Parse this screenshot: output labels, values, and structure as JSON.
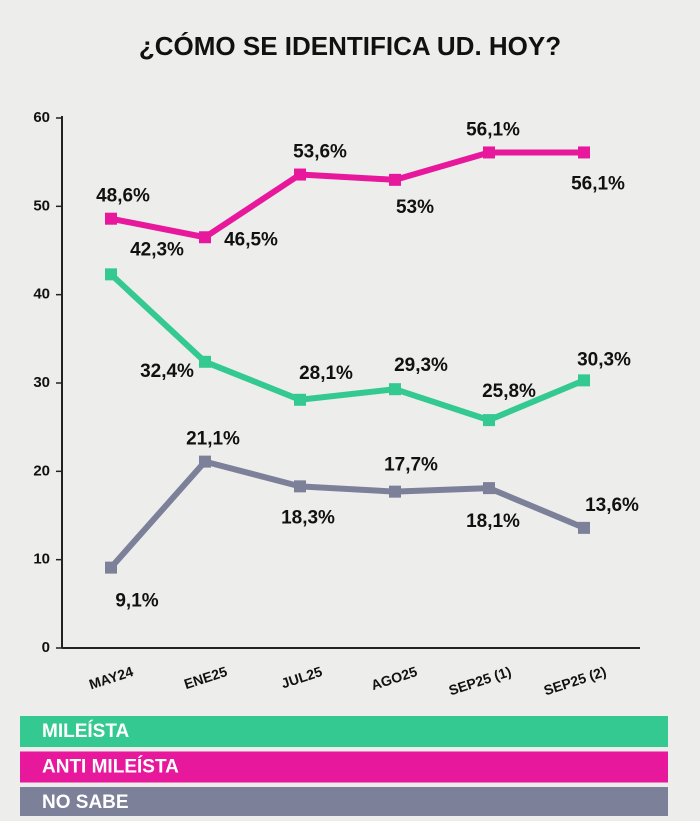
{
  "chart_data": {
    "type": "line",
    "title": "¿CÓMO SE IDENTIFICA UD. HOY?",
    "categories": [
      "MAY24",
      "ENE25",
      "JUL25",
      "AGO25",
      "SEP25 (1)",
      "SEP25 (2)"
    ],
    "series": [
      {
        "name": "MILEÍSTA",
        "color": "#34c991",
        "values": [
          42.3,
          32.4,
          28.1,
          29.3,
          25.8,
          30.3
        ],
        "value_labels": [
          "42,3%",
          "32,4%",
          "28,1%",
          "29,3%",
          "25,8%",
          "30,3%"
        ]
      },
      {
        "name": "ANTI MILEÍSTA",
        "color": "#e8189c",
        "values": [
          48.6,
          46.5,
          53.6,
          53,
          56.1,
          56.1
        ],
        "value_labels": [
          "48,6%",
          "46,5%",
          "53,6%",
          "53%",
          "56,1%",
          "56,1%"
        ]
      },
      {
        "name": "NO SABE",
        "color": "#7d8099",
        "values": [
          9.1,
          21.1,
          18.3,
          17.7,
          18.1,
          13.6
        ],
        "value_labels": [
          "9,1%",
          "21,1%",
          "18,3%",
          "17,7%",
          "18,1%",
          "13,6%"
        ]
      }
    ],
    "ylim": [
      0,
      60
    ],
    "yticks": [
      0,
      10,
      20,
      30,
      40,
      50,
      60
    ],
    "grid": false,
    "legend": "bottom"
  }
}
